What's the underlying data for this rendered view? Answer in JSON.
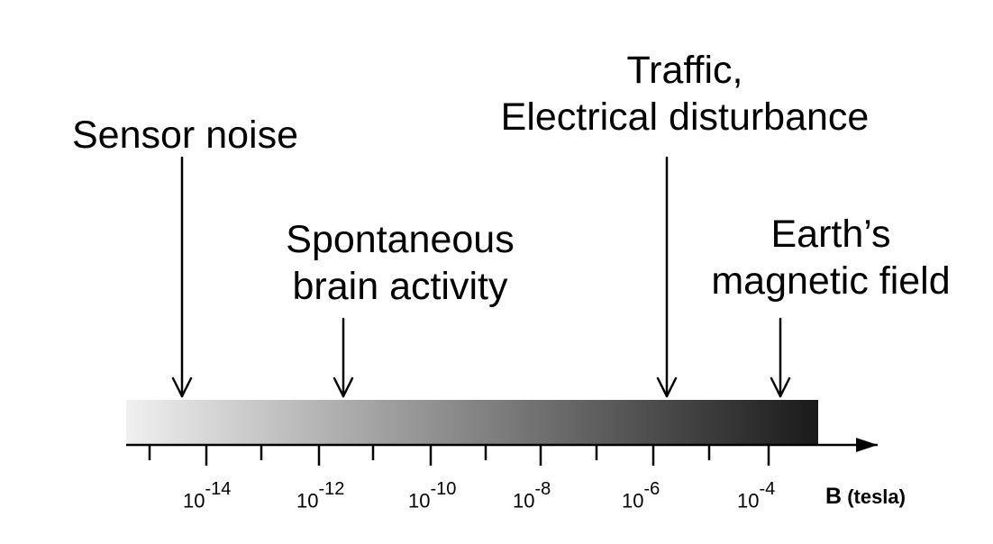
{
  "callouts": {
    "sensor_noise": {
      "line1": "Sensor noise"
    },
    "brain": {
      "line1": "Spontaneous",
      "line2": "brain activity"
    },
    "traffic": {
      "line1": "Traffic,",
      "line2": "Electrical disturbance"
    },
    "earth": {
      "line1": "Earth’s",
      "line2": "magnetic field"
    }
  },
  "axis": {
    "title_symbol": "B",
    "title_unit": "(tesla)",
    "tick_base": "10",
    "tick_exponents": [
      "-14",
      "-12",
      "-10",
      "-8",
      "-6",
      "-4"
    ]
  },
  "colors": {
    "gradient_start": "#f0f0f0",
    "gradient_end": "#1a1a1a",
    "ink": "#000000"
  }
}
